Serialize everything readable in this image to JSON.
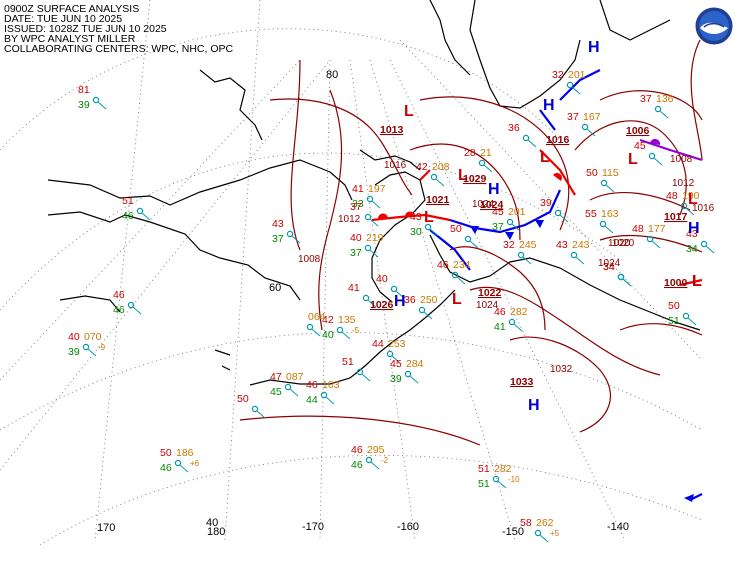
{
  "header": {
    "line1": "0900Z SURFACE ANALYSIS",
    "line2": "DATE: TUE JUN 10 2025",
    "line3": "ISSUED: 1028Z TUE JUN 10 2025",
    "line4": "BY WPC ANALYST MILLER",
    "line5": "COLLABORATING CENTERS: WPC, NHC, OPC"
  },
  "logo": {
    "icon": "noaa-logo-icon"
  },
  "colors": {
    "isobar": "#8b0000",
    "front_warm": "#ee0000",
    "front_cold": "#0000ee",
    "temp": "#cc0000",
    "dew": "#008800",
    "pressure": "#cc7700",
    "station": "#0099aa",
    "grid": "#777777",
    "high": "#0000cc",
    "low": "#cc0000"
  },
  "grid_labels": {
    "lat": [
      "80",
      "60",
      "40"
    ],
    "lon": [
      "170",
      "180",
      "-170",
      "-160",
      "-150",
      "-140"
    ]
  },
  "centers": [
    {
      "type": "L",
      "pressure": "1013"
    },
    {
      "type": "L",
      "pressure": "1016"
    },
    {
      "type": "L",
      "pressure": "1021"
    },
    {
      "type": "L",
      "pressure": "1029"
    },
    {
      "type": "L",
      "pressure": "1022"
    },
    {
      "type": "L",
      "pressure": "1006"
    },
    {
      "type": "L",
      "pressure": "1017"
    },
    {
      "type": "L",
      "pressure": "1000"
    },
    {
      "type": "H",
      "pressure": "1026"
    },
    {
      "type": "H",
      "pressure": "1033"
    },
    {
      "type": "H",
      "pressure": "1024"
    },
    {
      "type": "H",
      "pressure": ""
    },
    {
      "type": "H",
      "pressure": ""
    },
    {
      "type": "H",
      "pressure": ""
    },
    {
      "type": "L",
      "pressure": ""
    }
  ],
  "isobar_labels": [
    "1016",
    "1012",
    "1008",
    "1024",
    "1020",
    "1032",
    "1008",
    "1012",
    "1024",
    "1020",
    "1024",
    "1016"
  ],
  "stations": [
    {
      "t": "81",
      "d": "39",
      "p": ""
    },
    {
      "t": "51",
      "d": "46",
      "p": ""
    },
    {
      "t": "46",
      "d": "46",
      "p": ""
    },
    {
      "t": "40",
      "d": "39",
      "p": "070",
      "tend": "-9"
    },
    {
      "t": "43",
      "d": "37",
      "p": ""
    },
    {
      "t": "41",
      "d": "33",
      "p": "197"
    },
    {
      "t": "40",
      "d": "37",
      "p": "219"
    },
    {
      "t": "42",
      "d": "40",
      "p": "135",
      "tend": "-5"
    },
    {
      "t": "",
      "d": "",
      "p": "064"
    },
    {
      "t": "47",
      "d": "45",
      "p": "087"
    },
    {
      "t": "46",
      "d": "44",
      "p": "103"
    },
    {
      "t": "50",
      "d": "",
      "p": ""
    },
    {
      "t": "51",
      "d": "",
      "p": ""
    },
    {
      "t": "44",
      "d": "",
      "p": "253"
    },
    {
      "t": "45",
      "d": "39",
      "p": "284"
    },
    {
      "t": "50",
      "d": "46",
      "p": "186",
      "tend": "+6"
    },
    {
      "t": "46",
      "d": "46",
      "p": "295",
      "tend": "-2"
    },
    {
      "t": "51",
      "d": "51",
      "p": "282",
      "tend": "-10"
    },
    {
      "t": "58",
      "d": "",
      "p": "262",
      "tend": "+5"
    },
    {
      "t": "40",
      "d": "",
      "p": ""
    },
    {
      "t": "41",
      "d": "",
      "p": ""
    },
    {
      "t": "36",
      "d": "",
      "p": "250"
    },
    {
      "t": "46",
      "d": "",
      "p": "234"
    },
    {
      "t": "46",
      "d": "41",
      "p": "282"
    },
    {
      "t": "43",
      "d": "30",
      "p": ""
    },
    {
      "t": "42",
      "d": "",
      "p": "208"
    },
    {
      "t": "37",
      "d": "",
      "p": ""
    },
    {
      "t": "45",
      "d": "37",
      "p": "201"
    },
    {
      "t": "32",
      "d": "",
      "p": "245"
    },
    {
      "t": "43",
      "d": "",
      "p": "243"
    },
    {
      "t": "50",
      "d": "",
      "p": ""
    },
    {
      "t": "39",
      "d": "",
      "p": ""
    },
    {
      "t": "50",
      "d": "",
      "p": "115"
    },
    {
      "t": "55",
      "d": "",
      "p": "163"
    },
    {
      "t": "48",
      "d": "",
      "p": "177"
    },
    {
      "t": "48",
      "d": "",
      "p": "190"
    },
    {
      "t": "45",
      "d": "",
      "p": ""
    },
    {
      "t": "37",
      "d": "",
      "p": "136"
    },
    {
      "t": "37",
      "d": "",
      "p": "167"
    },
    {
      "t": "34",
      "d": "",
      "p": ""
    },
    {
      "t": "32",
      "d": "",
      "p": "201"
    },
    {
      "t": "36",
      "d": "",
      "p": ""
    },
    {
      "t": "28",
      "d": "",
      "p": "21"
    },
    {
      "t": "34",
      "d": "",
      "p": ""
    },
    {
      "t": "50",
      "d": "51",
      "p": ""
    },
    {
      "t": "43",
      "d": "34",
      "p": ""
    }
  ]
}
